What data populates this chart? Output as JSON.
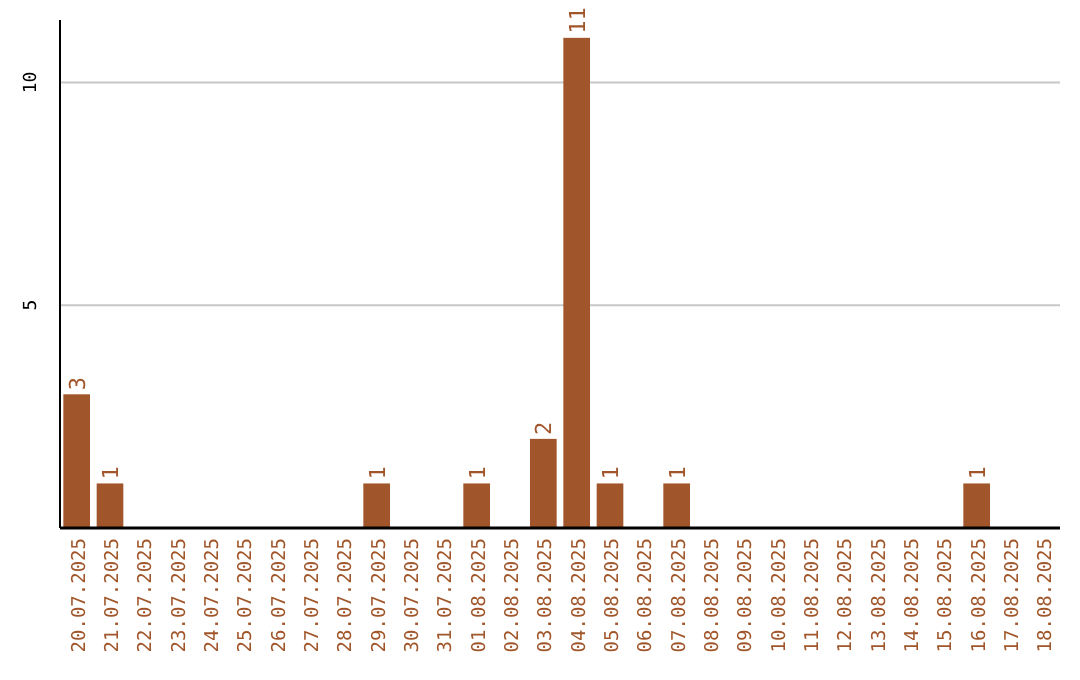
{
  "chart_data": {
    "type": "bar",
    "categories": [
      "20.07.2025",
      "21.07.2025",
      "22.07.2025",
      "23.07.2025",
      "24.07.2025",
      "25.07.2025",
      "26.07.2025",
      "27.07.2025",
      "28.07.2025",
      "29.07.2025",
      "30.07.2025",
      "31.07.2025",
      "01.08.2025",
      "02.08.2025",
      "03.08.2025",
      "04.08.2025",
      "05.08.2025",
      "06.08.2025",
      "07.08.2025",
      "08.08.2025",
      "09.08.2025",
      "10.08.2025",
      "11.08.2025",
      "12.08.2025",
      "13.08.2025",
      "14.08.2025",
      "15.08.2025",
      "16.08.2025",
      "17.08.2025",
      "18.08.2025"
    ],
    "values": [
      3,
      1,
      0,
      0,
      0,
      0,
      0,
      0,
      0,
      1,
      0,
      0,
      1,
      0,
      2,
      11,
      1,
      0,
      1,
      0,
      0,
      0,
      0,
      0,
      0,
      0,
      0,
      1,
      0,
      0
    ],
    "value_labels": [
      "3",
      "1",
      null,
      null,
      null,
      null,
      null,
      null,
      null,
      "1",
      null,
      null,
      "1",
      null,
      "2",
      "11",
      "1",
      null,
      "1",
      null,
      null,
      null,
      null,
      null,
      null,
      null,
      null,
      "1",
      null,
      null
    ],
    "color": "#a0562a",
    "ylim": [
      0,
      11.4
    ],
    "yticks": [
      5,
      10
    ],
    "grid": "y"
  }
}
